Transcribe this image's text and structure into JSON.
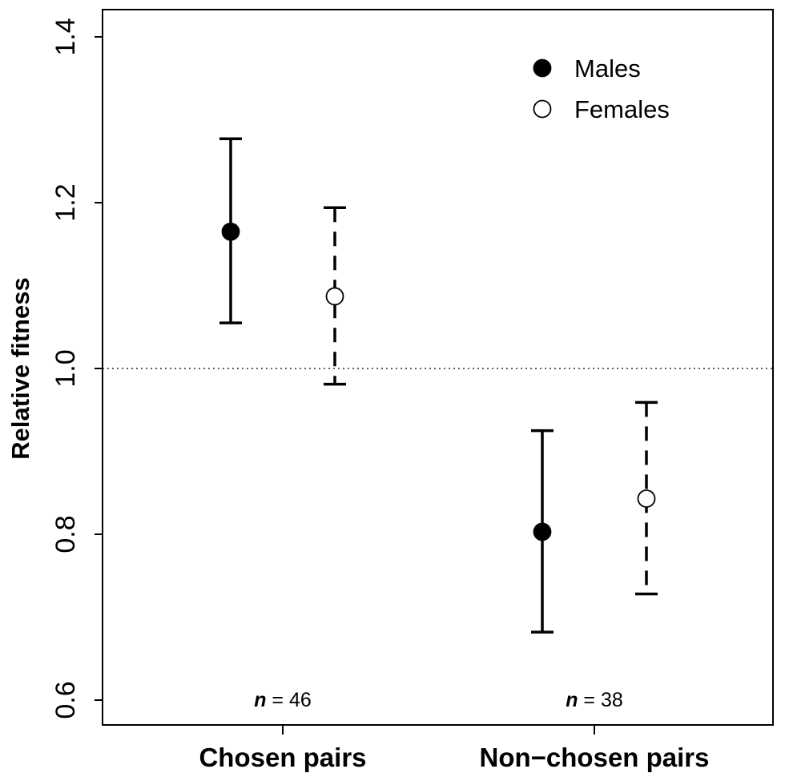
{
  "chart_data": {
    "type": "scatter",
    "subtype": "point-with-error-bars",
    "ylabel": "Relative fitness",
    "xlabel": "",
    "ylim": [
      0.6,
      1.4
    ],
    "yticks": [
      "0.6",
      "0.8",
      "1.0",
      "1.2",
      "1.4"
    ],
    "categories": [
      "Chosen pairs",
      "Non−chosen pairs"
    ],
    "reference_line": {
      "y": 1.0,
      "style": "dotted"
    },
    "grid": false,
    "legend": {
      "placement": "top-right",
      "entries": [
        "Males",
        "Females"
      ]
    },
    "series": [
      {
        "name": "Males",
        "marker": "filled-circle",
        "errorbar_style": "solid",
        "color": "#000000",
        "points": [
          {
            "category": "Chosen pairs",
            "y": 1.165,
            "lower": 1.055,
            "upper": 1.277
          },
          {
            "category": "Non−chosen pairs",
            "y": 0.803,
            "lower": 0.682,
            "upper": 0.925
          }
        ]
      },
      {
        "name": "Females",
        "marker": "open-circle",
        "errorbar_style": "dashed",
        "color": "#000000",
        "points": [
          {
            "category": "Chosen pairs",
            "y": 1.087,
            "lower": 0.981,
            "upper": 1.194
          },
          {
            "category": "Non−chosen pairs",
            "y": 0.843,
            "lower": 0.728,
            "upper": 0.959
          }
        ]
      }
    ],
    "annotations": [
      {
        "category": "Chosen pairs",
        "n_symbol": "n",
        "text": " = 46"
      },
      {
        "category": "Non−chosen pairs",
        "n_symbol": "n",
        "text": " = 38"
      }
    ]
  }
}
